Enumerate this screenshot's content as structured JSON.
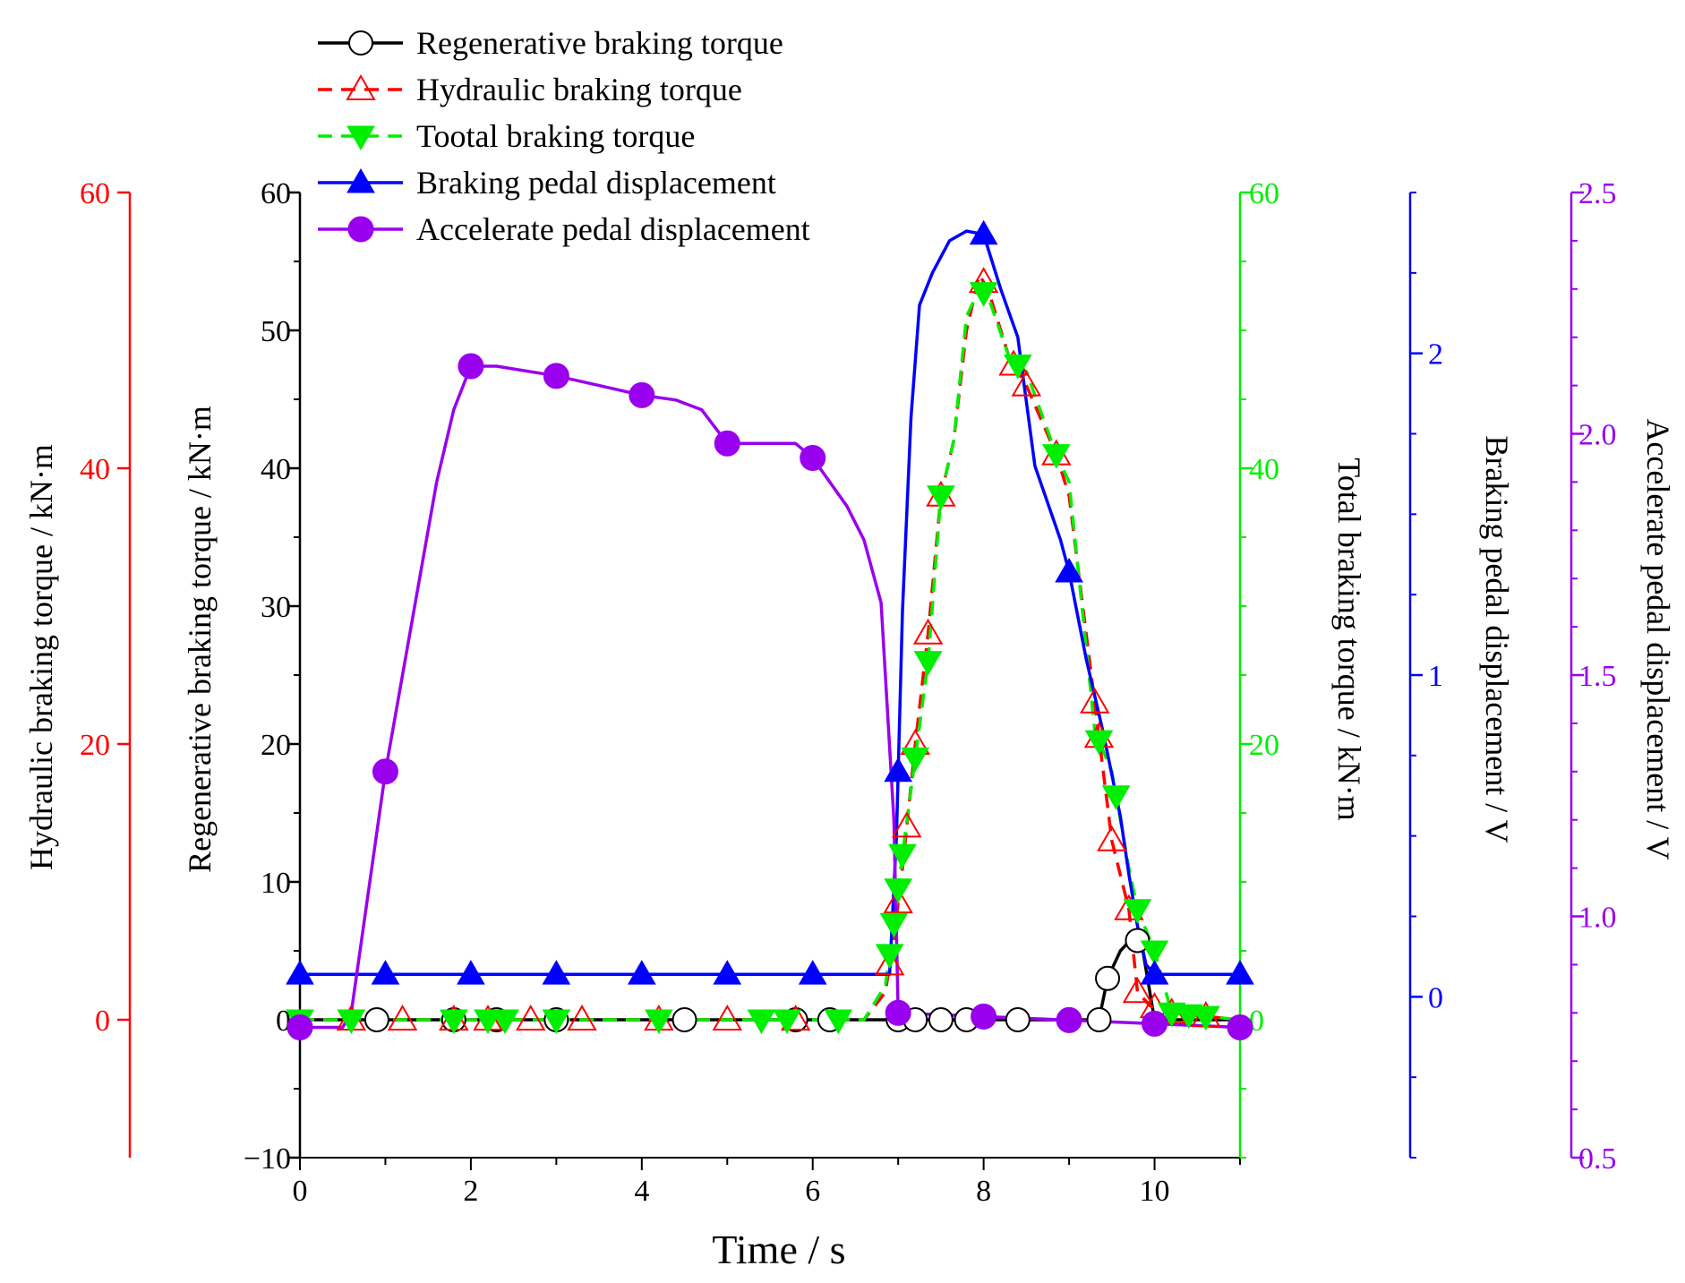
{
  "chart_data": {
    "type": "line",
    "title": "",
    "xlabel": "Time  / s",
    "xlim": [
      0,
      11
    ],
    "xticks": [
      0,
      2,
      4,
      6,
      8,
      10
    ],
    "axes": {
      "regen": {
        "label": "Regenerative braking torque  / kN·m",
        "range": [
          -10,
          60
        ],
        "ticks": [
          -10,
          0,
          10,
          20,
          30,
          40,
          50,
          60
        ],
        "color": "#000000"
      },
      "hydraulic": {
        "label": "Hydraulic braking torque  / kN·m",
        "range": [
          -10,
          60
        ],
        "ticks": [
          0,
          20,
          40,
          60
        ],
        "color": "#ff0000"
      },
      "total": {
        "label": "Total braking torque  / kN·m",
        "range": [
          -10,
          60
        ],
        "ticks": [
          0,
          20,
          40,
          60
        ],
        "color": "#00ee00"
      },
      "brake": {
        "label": "Braking pedal displacement  / V",
        "range": [
          -0.5,
          2.5
        ],
        "ticks": [
          0,
          1,
          2
        ],
        "color": "#0000ff"
      },
      "accel": {
        "label": "Accelerate pedal displacement  / V",
        "range": [
          0.5,
          2.5
        ],
        "ticks": [
          0.5,
          1.0,
          1.5,
          2.0,
          2.5
        ],
        "tick_labels": [
          "0.5",
          "1.0",
          "1.5",
          "2.0",
          "2.5"
        ],
        "color": "#9900ee"
      }
    },
    "legend_position": "top-left",
    "series": [
      {
        "name": "Regenerative braking torque",
        "axis": "regen",
        "color": "#000000",
        "dash": "solid",
        "marker": "circle-open",
        "x": [
          0,
          0.9,
          1.8,
          2.3,
          3.0,
          4.5,
          5.8,
          6.2,
          6.8,
          7.0,
          7.2,
          7.5,
          8.0,
          8.4,
          9.0,
          9.2,
          9.35,
          9.45,
          9.6,
          9.75,
          9.85,
          10.0,
          11.0
        ],
        "values": [
          0,
          0,
          0,
          0,
          0,
          0,
          0,
          0,
          0,
          0,
          0,
          0,
          0,
          0,
          0,
          0,
          0,
          3,
          5,
          6,
          5.5,
          0,
          0
        ],
        "marker_x": [
          0.9,
          1.8,
          2.3,
          3.0,
          4.5,
          5.8,
          6.2,
          7.0,
          7.2,
          7.5,
          7.8,
          8.4,
          9.0,
          9.35,
          9.45,
          9.8
        ]
      },
      {
        "name": "Hydraulic braking torque",
        "axis": "hydraulic",
        "color": "#ff0000",
        "dash": "dash",
        "marker": "triangle-up-open",
        "x": [
          0,
          6.6,
          6.85,
          6.95,
          7.05,
          7.2,
          7.35,
          7.5,
          7.65,
          7.8,
          7.95,
          8.05,
          8.3,
          8.5,
          8.85,
          9.0,
          9.3,
          9.5,
          9.7,
          9.8,
          9.95,
          10.2,
          11.0
        ],
        "values": [
          0,
          0,
          2,
          6,
          11,
          20,
          28,
          38,
          42,
          50,
          54,
          53,
          48,
          46,
          41,
          38,
          23,
          13,
          8,
          2,
          1,
          0.5,
          0
        ],
        "marker_x": [
          0.6,
          1.2,
          1.8,
          2.2,
          2.7,
          3.3,
          4.2,
          5.0,
          5.8,
          6.9,
          7.0,
          7.1,
          7.2,
          7.35,
          7.5,
          8.0,
          8.35,
          8.5,
          8.85,
          9.3,
          9.35,
          9.5,
          9.7,
          9.8,
          10.0,
          10.2,
          10.6
        ]
      },
      {
        "name": "Tootal braking torque",
        "axis": "total",
        "color": "#00ee00",
        "dash": "dash",
        "marker": "triangle-down-filled",
        "x": [
          0,
          6.6,
          6.85,
          6.95,
          7.05,
          7.2,
          7.35,
          7.5,
          7.65,
          7.8,
          7.95,
          8.05,
          8.3,
          8.5,
          8.85,
          9.0,
          9.3,
          9.5,
          9.7,
          9.8,
          10.0,
          10.2,
          11.0
        ],
        "values": [
          0,
          0,
          2.5,
          7,
          12,
          19,
          26,
          38,
          42,
          51,
          53,
          52.5,
          48,
          47,
          41,
          39,
          21,
          18,
          11,
          8,
          5,
          0.5,
          0
        ],
        "marker_x": [
          0,
          0.6,
          1.8,
          2.2,
          2.4,
          3.0,
          4.2,
          5.4,
          5.7,
          6.3,
          6.9,
          6.95,
          7.0,
          7.05,
          7.2,
          7.35,
          7.5,
          8.0,
          8.4,
          8.85,
          9.35,
          9.55,
          9.8,
          10.0,
          10.2,
          10.4,
          10.6
        ]
      },
      {
        "name": "Braking pedal displacement",
        "axis": "brake",
        "color": "#0000ff",
        "dash": "solid",
        "marker": "triangle-up-filled",
        "x": [
          0,
          6.9,
          6.98,
          7.05,
          7.15,
          7.25,
          7.4,
          7.6,
          7.8,
          8.0,
          8.2,
          8.4,
          8.6,
          8.9,
          9.0,
          9.2,
          9.4,
          9.6,
          9.7,
          9.8,
          9.9,
          10.0,
          11.0
        ],
        "values": [
          0.07,
          0.07,
          0.5,
          1.2,
          1.8,
          2.15,
          2.25,
          2.35,
          2.38,
          2.37,
          2.2,
          2.05,
          1.65,
          1.42,
          1.32,
          1.05,
          0.82,
          0.56,
          0.38,
          0.22,
          0.1,
          0.07,
          0.07
        ],
        "marker_x": [
          0,
          1.0,
          2.0,
          3.0,
          4.0,
          5.0,
          6.0,
          7.0,
          8.0,
          9.0,
          10.0,
          11.0
        ]
      },
      {
        "name": "Accelerate pedal displacement",
        "axis": "accel",
        "color": "#9900ee",
        "dash": "solid",
        "marker": "circle-filled",
        "x": [
          0,
          0.5,
          0.6,
          0.8,
          1.0,
          1.3,
          1.6,
          1.8,
          2.0,
          2.3,
          3.0,
          3.5,
          4.0,
          4.4,
          4.7,
          5.0,
          5.5,
          5.8,
          6.0,
          6.4,
          6.6,
          6.8,
          6.95,
          7.0,
          11.0
        ],
        "values": [
          0.77,
          0.77,
          0.8,
          1.05,
          1.3,
          1.6,
          1.9,
          2.05,
          2.14,
          2.14,
          2.12,
          2.1,
          2.08,
          2.07,
          2.05,
          1.98,
          1.98,
          1.98,
          1.95,
          1.85,
          1.78,
          1.65,
          1.2,
          0.8,
          0.77
        ],
        "marker_x": [
          0,
          1.0,
          2.0,
          3.0,
          4.0,
          5.0,
          6.0,
          7.0,
          8.0,
          9.0,
          10.0,
          11.0
        ]
      }
    ]
  }
}
